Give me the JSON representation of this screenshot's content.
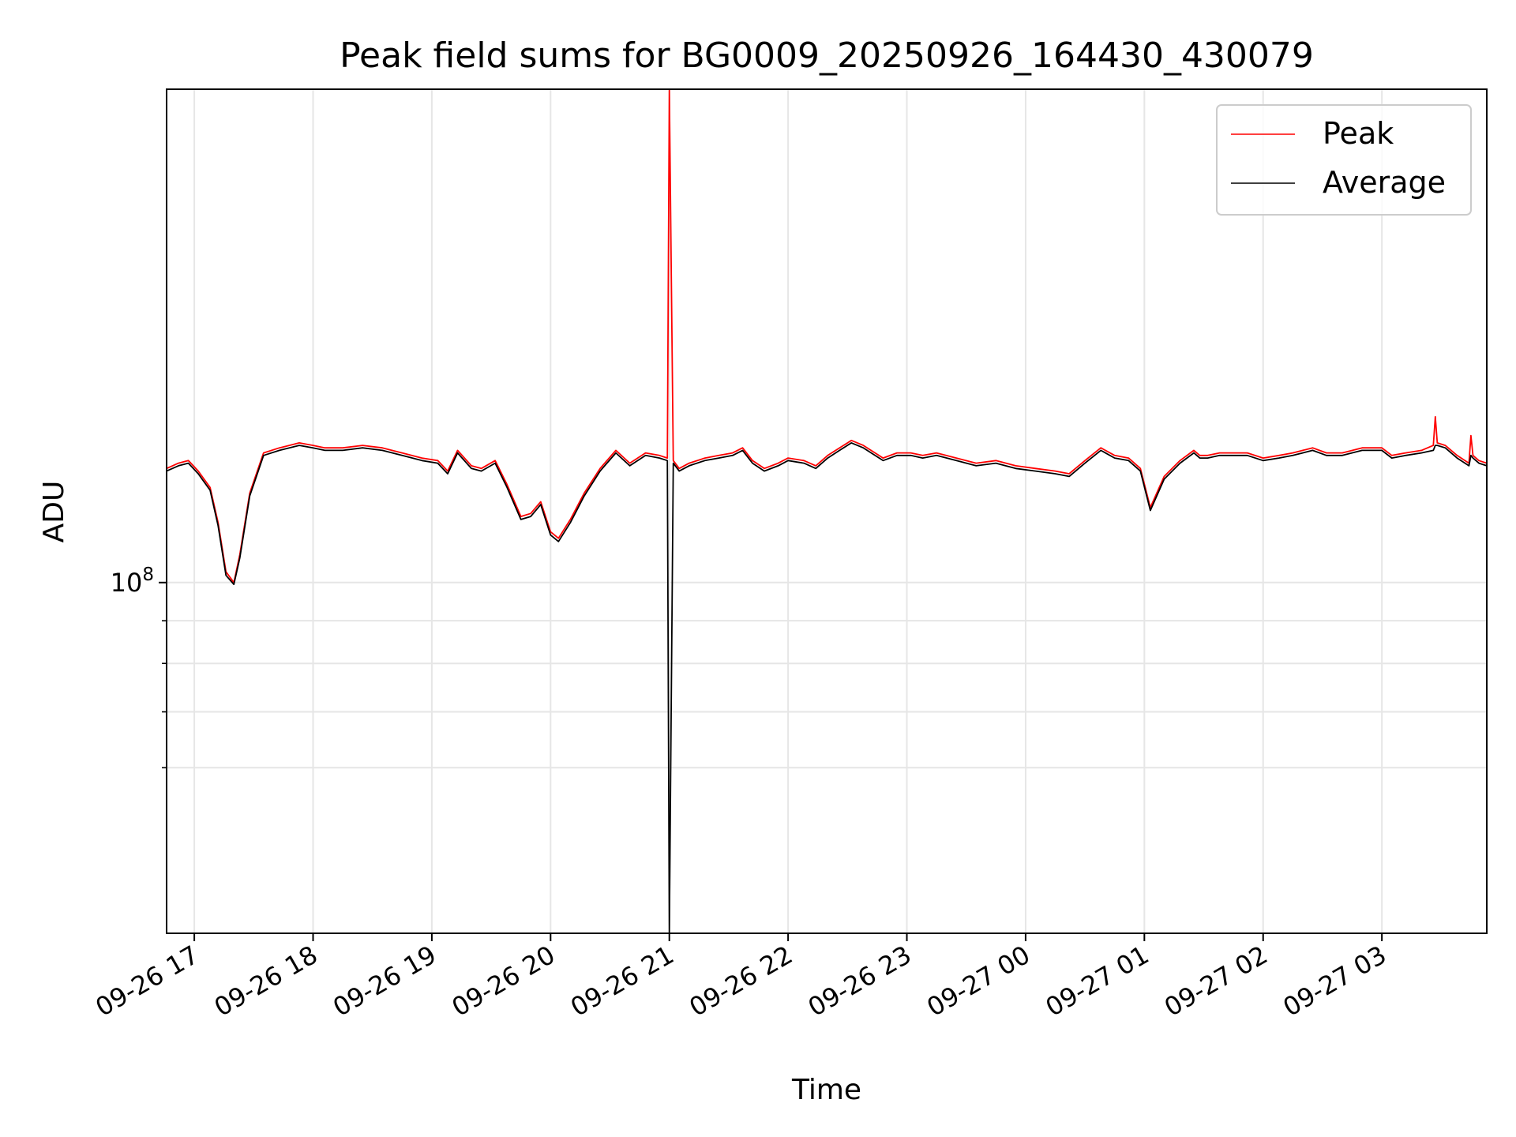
{
  "chart_data": {
    "type": "line",
    "title": "Peak field sums for BG0009_20250926_164430_430079",
    "xlabel": "Time",
    "ylabel": "ADU",
    "yscale": "log",
    "xlim": [
      "2025-09-26 16:46",
      "2025-09-27 03:53"
    ],
    "ylim": [
      38000000,
      390000000
    ],
    "grid": true,
    "legend_position": "top-right",
    "x_ticks": [
      "09-26 17",
      "09-26 18",
      "09-26 19",
      "09-26 20",
      "09-26 21",
      "09-26 22",
      "09-26 23",
      "09-27 00",
      "09-27 01",
      "09-27 02",
      "09-27 03"
    ],
    "y_tick_labels": [
      {
        "value": 100000000,
        "base": "10",
        "exponent": "8"
      }
    ],
    "y_minor_ticks": [
      60000000,
      70000000,
      80000000,
      90000000
    ],
    "series": [
      {
        "name": "Peak",
        "color": "#ff0000",
        "x": [
          "2025-09-26 16:46",
          "2025-09-26 16:52",
          "2025-09-26 16:57",
          "2025-09-26 17:02",
          "2025-09-26 17:08",
          "2025-09-26 17:12",
          "2025-09-26 17:16",
          "2025-09-26 17:20",
          "2025-09-26 17:23",
          "2025-09-26 17:28",
          "2025-09-26 17:35",
          "2025-09-26 17:43",
          "2025-09-26 17:48",
          "2025-09-26 17:53",
          "2025-09-26 18:00",
          "2025-09-26 18:06",
          "2025-09-26 18:15",
          "2025-09-26 18:25",
          "2025-09-26 18:35",
          "2025-09-26 18:45",
          "2025-09-26 18:55",
          "2025-09-26 19:03",
          "2025-09-26 19:08",
          "2025-09-26 19:13",
          "2025-09-26 19:20",
          "2025-09-26 19:25",
          "2025-09-26 19:32",
          "2025-09-26 19:38",
          "2025-09-26 19:45",
          "2025-09-26 19:50",
          "2025-09-26 19:55",
          "2025-09-26 20:00",
          "2025-09-26 20:04",
          "2025-09-26 20:10",
          "2025-09-26 20:17",
          "2025-09-26 20:25",
          "2025-09-26 20:33",
          "2025-09-26 20:40",
          "2025-09-26 20:48",
          "2025-09-26 20:55",
          "2025-09-26 20:59",
          "2025-09-26 21:00",
          "2025-09-26 21:02",
          "2025-09-26 21:05",
          "2025-09-26 21:10",
          "2025-09-26 21:18",
          "2025-09-26 21:25",
          "2025-09-26 21:32",
          "2025-09-26 21:37",
          "2025-09-26 21:42",
          "2025-09-26 21:48",
          "2025-09-26 21:55",
          "2025-09-26 22:00",
          "2025-09-26 22:08",
          "2025-09-26 22:14",
          "2025-09-26 22:20",
          "2025-09-26 22:26",
          "2025-09-26 22:32",
          "2025-09-26 22:38",
          "2025-09-26 22:48",
          "2025-09-26 22:55",
          "2025-09-26 23:02",
          "2025-09-26 23:08",
          "2025-09-26 23:15",
          "2025-09-26 23:25",
          "2025-09-26 23:35",
          "2025-09-26 23:45",
          "2025-09-26 23:55",
          "2025-09-27 00:05",
          "2025-09-27 00:15",
          "2025-09-27 00:22",
          "2025-09-27 00:30",
          "2025-09-27 00:38",
          "2025-09-27 00:45",
          "2025-09-27 00:52",
          "2025-09-27 00:58",
          "2025-09-27 01:03",
          "2025-09-27 01:10",
          "2025-09-27 01:18",
          "2025-09-27 01:25",
          "2025-09-27 01:28",
          "2025-09-27 01:32",
          "2025-09-27 01:38",
          "2025-09-27 01:45",
          "2025-09-27 01:52",
          "2025-09-27 02:00",
          "2025-09-27 02:08",
          "2025-09-27 02:15",
          "2025-09-27 02:20",
          "2025-09-27 02:25",
          "2025-09-27 02:32",
          "2025-09-27 02:40",
          "2025-09-27 02:50",
          "2025-09-27 03:00",
          "2025-09-27 03:05",
          "2025-09-27 03:12",
          "2025-09-27 03:20",
          "2025-09-27 03:26",
          "2025-09-27 03:27",
          "2025-09-27 03:28",
          "2025-09-27 03:32",
          "2025-09-27 03:38",
          "2025-09-27 03:44",
          "2025-09-27 03:45",
          "2025-09-27 03:46",
          "2025-09-27 03:49",
          "2025-09-27 03:53"
        ],
        "values": [
          137000000,
          139000000,
          140000000,
          136000000,
          130000000,
          118000000,
          103000000,
          100000000,
          108000000,
          128000000,
          143000000,
          145000000,
          146000000,
          147000000,
          146000000,
          145000000,
          145000000,
          146000000,
          145000000,
          143000000,
          141000000,
          140000000,
          136000000,
          144000000,
          138000000,
          137000000,
          140000000,
          131000000,
          120000000,
          121000000,
          125000000,
          115000000,
          113000000,
          119000000,
          128000000,
          137000000,
          144000000,
          139000000,
          143000000,
          142000000,
          141000000,
          390000000,
          140000000,
          137000000,
          139000000,
          141000000,
          142000000,
          143000000,
          145000000,
          140000000,
          137000000,
          139000000,
          141000000,
          140000000,
          138000000,
          142000000,
          145000000,
          148000000,
          146000000,
          141000000,
          143000000,
          143000000,
          142000000,
          143000000,
          141000000,
          139000000,
          140000000,
          138000000,
          137000000,
          136000000,
          135000000,
          140000000,
          145000000,
          142000000,
          141000000,
          137000000,
          123000000,
          134000000,
          140000000,
          144000000,
          142000000,
          142000000,
          143000000,
          143000000,
          143000000,
          141000000,
          142000000,
          143000000,
          144000000,
          145000000,
          143000000,
          143000000,
          145000000,
          145000000,
          142000000,
          143000000,
          144000000,
          146000000,
          158000000,
          147000000,
          146000000,
          142000000,
          139000000,
          150000000,
          142000000,
          140000000,
          139000000
        ]
      },
      {
        "name": "Average",
        "color": "#000000",
        "x": [
          "2025-09-26 16:46",
          "2025-09-26 16:52",
          "2025-09-26 16:57",
          "2025-09-26 17:02",
          "2025-09-26 17:08",
          "2025-09-26 17:12",
          "2025-09-26 17:16",
          "2025-09-26 17:20",
          "2025-09-26 17:23",
          "2025-09-26 17:28",
          "2025-09-26 17:35",
          "2025-09-26 17:43",
          "2025-09-26 17:48",
          "2025-09-26 17:53",
          "2025-09-26 18:00",
          "2025-09-26 18:06",
          "2025-09-26 18:15",
          "2025-09-26 18:25",
          "2025-09-26 18:35",
          "2025-09-26 18:45",
          "2025-09-26 18:55",
          "2025-09-26 19:03",
          "2025-09-26 19:08",
          "2025-09-26 19:13",
          "2025-09-26 19:20",
          "2025-09-26 19:25",
          "2025-09-26 19:32",
          "2025-09-26 19:38",
          "2025-09-26 19:45",
          "2025-09-26 19:50",
          "2025-09-26 19:55",
          "2025-09-26 20:00",
          "2025-09-26 20:04",
          "2025-09-26 20:10",
          "2025-09-26 20:17",
          "2025-09-26 20:25",
          "2025-09-26 20:33",
          "2025-09-26 20:40",
          "2025-09-26 20:48",
          "2025-09-26 20:55",
          "2025-09-26 20:59",
          "2025-09-26 21:00",
          "2025-09-26 21:02",
          "2025-09-26 21:05",
          "2025-09-26 21:10",
          "2025-09-26 21:18",
          "2025-09-26 21:25",
          "2025-09-26 21:32",
          "2025-09-26 21:37",
          "2025-09-26 21:42",
          "2025-09-26 21:48",
          "2025-09-26 21:55",
          "2025-09-26 22:00",
          "2025-09-26 22:08",
          "2025-09-26 22:14",
          "2025-09-26 22:20",
          "2025-09-26 22:26",
          "2025-09-26 22:32",
          "2025-09-26 22:38",
          "2025-09-26 22:48",
          "2025-09-26 22:55",
          "2025-09-26 23:02",
          "2025-09-26 23:08",
          "2025-09-26 23:15",
          "2025-09-26 23:25",
          "2025-09-26 23:35",
          "2025-09-26 23:45",
          "2025-09-26 23:55",
          "2025-09-27 00:05",
          "2025-09-27 00:15",
          "2025-09-27 00:22",
          "2025-09-27 00:30",
          "2025-09-27 00:38",
          "2025-09-27 00:45",
          "2025-09-27 00:52",
          "2025-09-27 00:58",
          "2025-09-27 01:03",
          "2025-09-27 01:10",
          "2025-09-27 01:18",
          "2025-09-27 01:25",
          "2025-09-27 01:28",
          "2025-09-27 01:32",
          "2025-09-27 01:38",
          "2025-09-27 01:45",
          "2025-09-27 01:52",
          "2025-09-27 02:00",
          "2025-09-27 02:08",
          "2025-09-27 02:15",
          "2025-09-27 02:20",
          "2025-09-27 02:25",
          "2025-09-27 02:32",
          "2025-09-27 02:40",
          "2025-09-27 02:50",
          "2025-09-27 03:00",
          "2025-09-27 03:05",
          "2025-09-27 03:12",
          "2025-09-27 03:20",
          "2025-09-27 03:26",
          "2025-09-27 03:27",
          "2025-09-27 03:28",
          "2025-09-27 03:32",
          "2025-09-27 03:38",
          "2025-09-27 03:44",
          "2025-09-27 03:45",
          "2025-09-27 03:46",
          "2025-09-27 03:49",
          "2025-09-27 03:53"
        ],
        "values": [
          136000000,
          138000000,
          139000000,
          135000000,
          129000000,
          117000000,
          102000000,
          99500000,
          107000000,
          127000000,
          142000000,
          144000000,
          145000000,
          146000000,
          145000000,
          144000000,
          144000000,
          145000000,
          144000000,
          142000000,
          140000000,
          139000000,
          135000000,
          143000000,
          137000000,
          136000000,
          139000000,
          130000000,
          119000000,
          120000000,
          124000000,
          114000000,
          112000000,
          118000000,
          127000000,
          136000000,
          143000000,
          138000000,
          142000000,
          141000000,
          140000000,
          38000000,
          139000000,
          136000000,
          138000000,
          140000000,
          141000000,
          142000000,
          144000000,
          139000000,
          136000000,
          138000000,
          140000000,
          139000000,
          137000000,
          141000000,
          144000000,
          147000000,
          145000000,
          140000000,
          142000000,
          142000000,
          141000000,
          142000000,
          140000000,
          138000000,
          139000000,
          137000000,
          136000000,
          135000000,
          134000000,
          139000000,
          144000000,
          141000000,
          140000000,
          136000000,
          122000000,
          133000000,
          139000000,
          143000000,
          141000000,
          141000000,
          142000000,
          142000000,
          142000000,
          140000000,
          141000000,
          142000000,
          143000000,
          144000000,
          142000000,
          142000000,
          144000000,
          144000000,
          141000000,
          142000000,
          143000000,
          144000000,
          146000000,
          146000000,
          145000000,
          141000000,
          138000000,
          142000000,
          141000000,
          139000000,
          138000000
        ]
      }
    ]
  }
}
